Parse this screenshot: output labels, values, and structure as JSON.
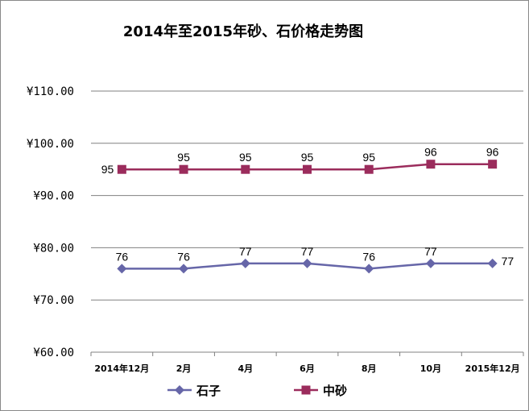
{
  "chart_data": {
    "type": "line",
    "title": "2014年至2015年砂、石价格走势图",
    "categories": [
      "2014年12月",
      "2月",
      "4月",
      "6月",
      "8月",
      "10月",
      "2015年12月"
    ],
    "series": [
      {
        "name": "石子",
        "values": [
          76,
          76,
          77,
          77,
          76,
          77,
          77
        ],
        "color": "#6666a8",
        "marker": "diamond"
      },
      {
        "name": "中砂",
        "values": [
          95,
          95,
          95,
          95,
          95,
          96,
          96
        ],
        "color": "#9b2c5c",
        "marker": "square"
      }
    ],
    "yticks": [
      "¥110.00",
      "¥100.00",
      "¥90.00",
      "¥80.00",
      "¥70.00",
      "¥60.00"
    ],
    "ylim": [
      60,
      110
    ],
    "grid": true,
    "legend_position": "bottom"
  }
}
